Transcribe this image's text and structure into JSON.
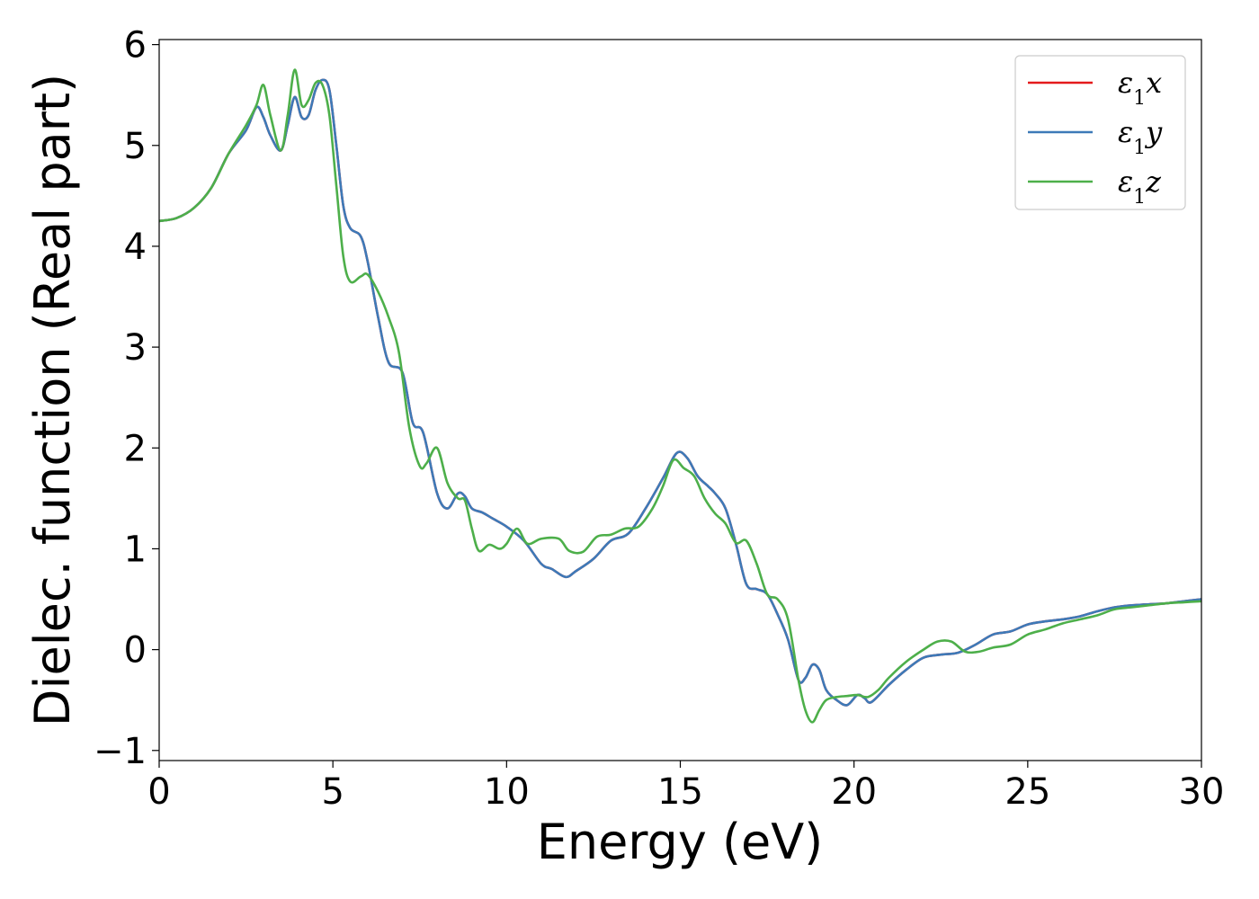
{
  "chart_data": {
    "type": "line",
    "title": "",
    "xlabel": "Energy (eV)",
    "ylabel": "Dielec. function (Real part)",
    "xlim": [
      0,
      30
    ],
    "ylim": [
      -1.1,
      6.05
    ],
    "xticks": [
      0,
      5,
      10,
      15,
      20,
      25,
      30
    ],
    "yticks": [
      -1,
      0,
      1,
      2,
      3,
      4,
      5,
      6
    ],
    "ytick_labels": [
      "−1",
      "0",
      "1",
      "2",
      "3",
      "4",
      "5",
      "6"
    ],
    "grid": false,
    "legend": "top-right",
    "series": [
      {
        "name_base": "ε",
        "name_sub": "1",
        "name_axis": "x",
        "color": "#e41a1c",
        "x": [
          0,
          0.5,
          1,
          1.5,
          2,
          2.5,
          2.8,
          3.0,
          3.2,
          3.5,
          3.7,
          3.9,
          4.1,
          4.3,
          4.5,
          4.7,
          4.9,
          5.1,
          5.3,
          5.5,
          5.8,
          6.0,
          6.3,
          6.6,
          7.0,
          7.3,
          7.6,
          8.0,
          8.3,
          8.6,
          8.8,
          9.0,
          9.3,
          9.6,
          10.0,
          10.5,
          11.0,
          11.3,
          11.7,
          12.0,
          12.5,
          13.0,
          13.5,
          14.0,
          14.5,
          14.9,
          15.2,
          15.5,
          15.8,
          16.0,
          16.3,
          16.6,
          16.9,
          17.2,
          17.5,
          17.8,
          18.1,
          18.4,
          18.6,
          18.8,
          19.0,
          19.2,
          19.5,
          19.8,
          20.1,
          20.3,
          20.5,
          21.0,
          21.5,
          22.0,
          22.5,
          23.0,
          23.5,
          24.0,
          24.5,
          25.0,
          25.5,
          26.0,
          26.5,
          27.0,
          27.5,
          28.0,
          28.5,
          29.0,
          29.5,
          30.0
        ],
        "y": [
          4.25,
          4.28,
          4.38,
          4.58,
          4.92,
          5.15,
          5.38,
          5.28,
          5.1,
          4.95,
          5.2,
          5.48,
          5.28,
          5.3,
          5.55,
          5.65,
          5.55,
          5.0,
          4.4,
          4.18,
          4.1,
          3.85,
          3.3,
          2.85,
          2.75,
          2.25,
          2.15,
          1.55,
          1.4,
          1.55,
          1.52,
          1.4,
          1.36,
          1.3,
          1.22,
          1.08,
          0.85,
          0.8,
          0.72,
          0.78,
          0.9,
          1.08,
          1.15,
          1.4,
          1.7,
          1.95,
          1.9,
          1.72,
          1.62,
          1.55,
          1.4,
          1.05,
          0.65,
          0.6,
          0.55,
          0.35,
          0.1,
          -0.3,
          -0.28,
          -0.15,
          -0.2,
          -0.4,
          -0.5,
          -0.55,
          -0.45,
          -0.48,
          -0.52,
          -0.35,
          -0.2,
          -0.08,
          -0.05,
          -0.03,
          0.05,
          0.15,
          0.18,
          0.25,
          0.28,
          0.3,
          0.33,
          0.38,
          0.42,
          0.44,
          0.45,
          0.46,
          0.48,
          0.5
        ]
      },
      {
        "name_base": "ε",
        "name_sub": "1",
        "name_axis": "y",
        "color": "#3d7ab8",
        "x": [
          0,
          0.5,
          1,
          1.5,
          2,
          2.5,
          2.8,
          3.0,
          3.2,
          3.5,
          3.7,
          3.9,
          4.1,
          4.3,
          4.5,
          4.7,
          4.9,
          5.1,
          5.3,
          5.5,
          5.8,
          6.0,
          6.3,
          6.6,
          7.0,
          7.3,
          7.6,
          8.0,
          8.3,
          8.6,
          8.8,
          9.0,
          9.3,
          9.6,
          10.0,
          10.5,
          11.0,
          11.3,
          11.7,
          12.0,
          12.5,
          13.0,
          13.5,
          14.0,
          14.5,
          14.9,
          15.2,
          15.5,
          15.8,
          16.0,
          16.3,
          16.6,
          16.9,
          17.2,
          17.5,
          17.8,
          18.1,
          18.4,
          18.6,
          18.8,
          19.0,
          19.2,
          19.5,
          19.8,
          20.1,
          20.3,
          20.5,
          21.0,
          21.5,
          22.0,
          22.5,
          23.0,
          23.5,
          24.0,
          24.5,
          25.0,
          25.5,
          26.0,
          26.5,
          27.0,
          27.5,
          28.0,
          28.5,
          29.0,
          29.5,
          30.0
        ],
        "y": [
          4.25,
          4.28,
          4.38,
          4.58,
          4.92,
          5.15,
          5.38,
          5.28,
          5.1,
          4.95,
          5.2,
          5.48,
          5.28,
          5.3,
          5.55,
          5.65,
          5.55,
          5.0,
          4.4,
          4.18,
          4.1,
          3.85,
          3.3,
          2.85,
          2.75,
          2.25,
          2.15,
          1.55,
          1.4,
          1.55,
          1.52,
          1.4,
          1.36,
          1.3,
          1.22,
          1.08,
          0.85,
          0.8,
          0.72,
          0.78,
          0.9,
          1.08,
          1.15,
          1.4,
          1.7,
          1.95,
          1.9,
          1.72,
          1.62,
          1.55,
          1.4,
          1.05,
          0.65,
          0.6,
          0.55,
          0.35,
          0.1,
          -0.3,
          -0.28,
          -0.15,
          -0.2,
          -0.4,
          -0.5,
          -0.55,
          -0.45,
          -0.48,
          -0.52,
          -0.35,
          -0.2,
          -0.08,
          -0.05,
          -0.03,
          0.05,
          0.15,
          0.18,
          0.25,
          0.28,
          0.3,
          0.33,
          0.38,
          0.42,
          0.44,
          0.45,
          0.46,
          0.48,
          0.5
        ]
      },
      {
        "name_base": "ε",
        "name_sub": "1",
        "name_axis": "z",
        "color": "#4daf4a",
        "x": [
          0,
          0.5,
          1,
          1.5,
          2,
          2.5,
          2.8,
          3.0,
          3.2,
          3.5,
          3.7,
          3.9,
          4.1,
          4.3,
          4.5,
          4.7,
          4.9,
          5.1,
          5.3,
          5.5,
          5.8,
          6.0,
          6.3,
          6.6,
          6.9,
          7.2,
          7.5,
          7.7,
          8.0,
          8.3,
          8.6,
          8.8,
          9.0,
          9.2,
          9.5,
          9.8,
          10.0,
          10.3,
          10.6,
          11.0,
          11.5,
          11.8,
          12.2,
          12.6,
          13.0,
          13.4,
          13.8,
          14.2,
          14.5,
          14.8,
          15.1,
          15.4,
          15.7,
          16.0,
          16.3,
          16.6,
          16.9,
          17.2,
          17.5,
          17.8,
          18.1,
          18.4,
          18.6,
          18.8,
          19.0,
          19.2,
          19.5,
          19.8,
          20.1,
          20.4,
          20.7,
          21.0,
          21.5,
          22.0,
          22.4,
          22.8,
          23.2,
          23.6,
          24.0,
          24.5,
          25.0,
          25.5,
          26.0,
          26.5,
          27.0,
          27.5,
          28.0,
          28.5,
          29.0,
          29.5,
          30.0
        ],
        "y": [
          4.25,
          4.28,
          4.38,
          4.58,
          4.92,
          5.2,
          5.4,
          5.6,
          5.3,
          4.95,
          5.3,
          5.75,
          5.4,
          5.45,
          5.62,
          5.6,
          5.3,
          4.6,
          3.9,
          3.65,
          3.7,
          3.72,
          3.55,
          3.3,
          2.95,
          2.2,
          1.82,
          1.85,
          2.0,
          1.65,
          1.5,
          1.48,
          1.2,
          0.98,
          1.04,
          1.0,
          1.05,
          1.2,
          1.05,
          1.1,
          1.1,
          0.98,
          0.97,
          1.12,
          1.14,
          1.2,
          1.22,
          1.4,
          1.62,
          1.88,
          1.8,
          1.72,
          1.5,
          1.35,
          1.25,
          1.06,
          1.08,
          0.85,
          0.55,
          0.5,
          0.3,
          -0.3,
          -0.6,
          -0.72,
          -0.6,
          -0.5,
          -0.47,
          -0.46,
          -0.45,
          -0.47,
          -0.4,
          -0.28,
          -0.12,
          0.0,
          0.08,
          0.08,
          -0.02,
          -0.02,
          0.02,
          0.05,
          0.15,
          0.2,
          0.26,
          0.3,
          0.34,
          0.4,
          0.42,
          0.44,
          0.46,
          0.47,
          0.48
        ]
      }
    ]
  }
}
